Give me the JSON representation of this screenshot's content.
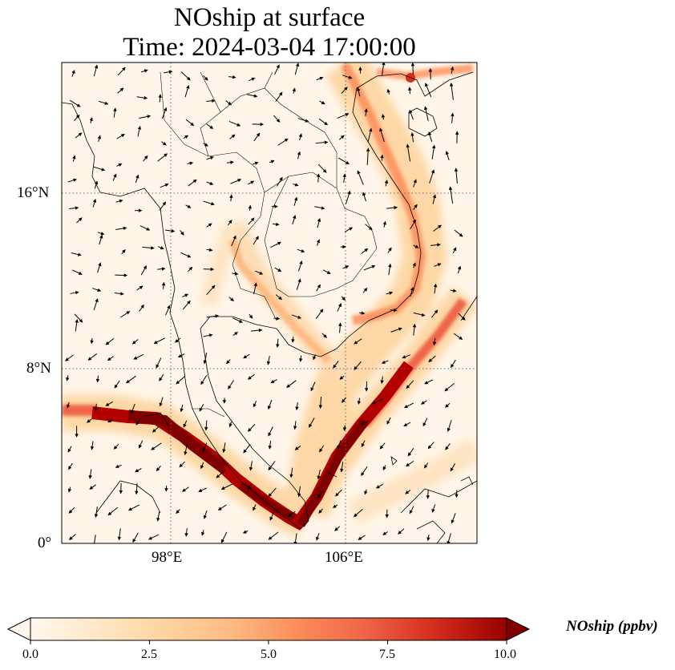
{
  "title": {
    "line1": "NOship at surface",
    "line2": "Time: 2024-03-04 17:00:00"
  },
  "map": {
    "projection": "PlateCarree",
    "lon_range": [
      93,
      112
    ],
    "lat_range": [
      0,
      22
    ],
    "gridlines": "dotted",
    "lat_ticks": [
      "16°N",
      "8°N",
      "0°"
    ],
    "lon_ticks": [
      "98°E",
      "106°E"
    ],
    "wind_vectors": true
  },
  "colorbar": {
    "colormap": "OrRd",
    "vmin": 0.0,
    "vmax": 10.0,
    "extend": "both",
    "ticks": [
      "0.0",
      "2.5",
      "5.0",
      "7.5",
      "10.0"
    ],
    "label": "NOship (ppbv)"
  },
  "colors": {
    "low": "#fff7ec",
    "mid": "#fc8d59",
    "high": "#7f0000"
  }
}
